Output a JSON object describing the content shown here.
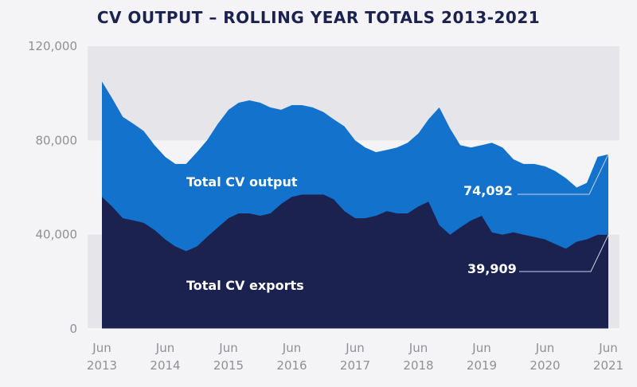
{
  "chart_data": {
    "type": "area",
    "title": "CV OUTPUT – ROLLING YEAR TOTALS 2013-2021",
    "xlabel": "",
    "ylabel": "",
    "ylim": [
      0,
      120000
    ],
    "y_ticks": [
      "0",
      "40,000",
      "80,000",
      "120,000"
    ],
    "x_ticks": [
      {
        "month": "Jun",
        "year": "2013",
        "t": 2013.42
      },
      {
        "month": "Jun",
        "year": "2014",
        "t": 2014.42
      },
      {
        "month": "Jun",
        "year": "2015",
        "t": 2015.42
      },
      {
        "month": "Jun",
        "year": "2016",
        "t": 2016.42
      },
      {
        "month": "Jun",
        "year": "2017",
        "t": 2017.42
      },
      {
        "month": "Jun",
        "year": "2018",
        "t": 2018.42
      },
      {
        "month": "Jun",
        "year": "2019",
        "t": 2019.42
      },
      {
        "month": "Jun",
        "year": "2020",
        "t": 2020.42
      },
      {
        "month": "Jun",
        "year": "2021",
        "t": 2021.42
      }
    ],
    "series": [
      {
        "name": "Total CV output",
        "color": "#1272cc",
        "x": [
          2013.42,
          2013.58,
          2013.75,
          2013.92,
          2014.08,
          2014.25,
          2014.42,
          2014.58,
          2014.75,
          2014.92,
          2015.08,
          2015.25,
          2015.42,
          2015.58,
          2015.75,
          2015.92,
          2016.08,
          2016.25,
          2016.42,
          2016.58,
          2016.75,
          2016.92,
          2017.08,
          2017.25,
          2017.42,
          2017.58,
          2017.75,
          2017.92,
          2018.08,
          2018.25,
          2018.42,
          2018.58,
          2018.75,
          2018.92,
          2019.08,
          2019.25,
          2019.42,
          2019.58,
          2019.75,
          2019.92,
          2020.08,
          2020.25,
          2020.42,
          2020.58,
          2020.75,
          2020.92,
          2021.08,
          2021.25,
          2021.42
        ],
        "values": [
          105000,
          98000,
          90000,
          87000,
          84000,
          78000,
          73000,
          70000,
          70000,
          75000,
          80000,
          87000,
          93000,
          96000,
          97000,
          96000,
          94000,
          93000,
          95000,
          95000,
          94000,
          92000,
          89000,
          86000,
          80000,
          77000,
          75000,
          76000,
          77000,
          79000,
          83000,
          89000,
          94000,
          85000,
          78000,
          77000,
          78000,
          79000,
          77000,
          72000,
          70000,
          70000,
          69000,
          67000,
          64000,
          60000,
          62000,
          73000,
          74092
        ]
      },
      {
        "name": "Total CV exports",
        "color": "#1b2250",
        "x": [
          2013.42,
          2013.58,
          2013.75,
          2013.92,
          2014.08,
          2014.25,
          2014.42,
          2014.58,
          2014.75,
          2014.92,
          2015.08,
          2015.25,
          2015.42,
          2015.58,
          2015.75,
          2015.92,
          2016.08,
          2016.25,
          2016.42,
          2016.58,
          2016.75,
          2016.92,
          2017.08,
          2017.25,
          2017.42,
          2017.58,
          2017.75,
          2017.92,
          2018.08,
          2018.25,
          2018.42,
          2018.58,
          2018.75,
          2018.92,
          2019.08,
          2019.25,
          2019.42,
          2019.58,
          2019.75,
          2019.92,
          2020.08,
          2020.25,
          2020.42,
          2020.58,
          2020.75,
          2020.92,
          2021.08,
          2021.25,
          2021.42
        ],
        "values": [
          56000,
          52000,
          47000,
          46000,
          45000,
          42000,
          38000,
          35000,
          33000,
          35000,
          39000,
          43000,
          47000,
          49000,
          49000,
          48000,
          49000,
          53000,
          56000,
          57000,
          57000,
          57000,
          55000,
          50000,
          47000,
          47000,
          48000,
          50000,
          49000,
          49000,
          52000,
          54000,
          44000,
          40000,
          43000,
          46000,
          48000,
          41000,
          40000,
          41000,
          40000,
          39000,
          38000,
          36000,
          34000,
          37000,
          38000,
          39909,
          39909
        ]
      }
    ],
    "annotations": [
      {
        "label": "74,092",
        "series": "Total CV output",
        "value": 74092
      },
      {
        "label": "39,909",
        "series": "Total CV exports",
        "value": 39909
      }
    ],
    "series_labels": [
      "Total CV output",
      "Total CV exports"
    ],
    "band_colors": {
      "upper": "#e6e6ea",
      "lower": "#f4f4f6"
    },
    "grid": false,
    "legend": "none"
  }
}
